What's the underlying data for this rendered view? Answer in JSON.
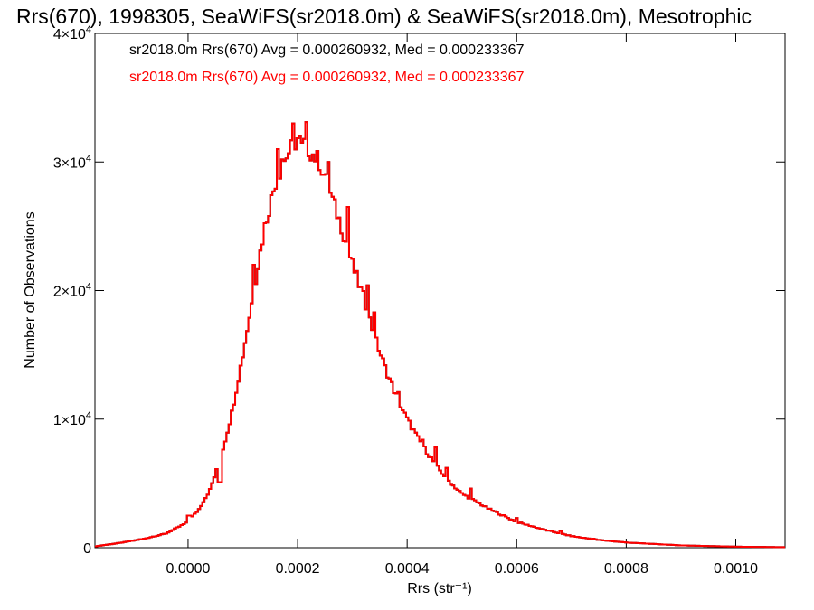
{
  "chart_data": {
    "type": "histogram",
    "title": "Rrs(670), 1998305, SeaWiFS(sr2018.0m) & SeaWiFS(sr2018.0m), Mesotrophic",
    "xlabel": "Rrs (str⁻¹)",
    "ylabel": "Number of Observations",
    "xlim": [
      -0.00017,
      0.00109
    ],
    "ylim": [
      0,
      40000
    ],
    "x_ticks": [
      {
        "value": 0.0,
        "label": "0.0000"
      },
      {
        "value": 0.0002,
        "label": "0.0002"
      },
      {
        "value": 0.0004,
        "label": "0.0004"
      },
      {
        "value": 0.0006,
        "label": "0.0006"
      },
      {
        "value": 0.0008,
        "label": "0.0008"
      },
      {
        "value": 0.001,
        "label": "0.0010"
      }
    ],
    "y_ticks": [
      {
        "value": 0,
        "mantissa": "0",
        "exponent": ""
      },
      {
        "value": 10000,
        "mantissa": "1×10",
        "exponent": "4"
      },
      {
        "value": 20000,
        "mantissa": "2×10",
        "exponent": "4"
      },
      {
        "value": 30000,
        "mantissa": "3×10",
        "exponent": "4"
      },
      {
        "value": 40000,
        "mantissa": "4×10",
        "exponent": "4"
      }
    ],
    "grid": false,
    "series": [
      {
        "name": "sr2018.0m Rrs(670) Avg = 0.000260932, Med = 0.000233367",
        "color": "#000000",
        "bin_start": -0.00017,
        "bin_width": 4e-06,
        "curve": [
          [
            -0.00017,
            100
          ],
          [
            -0.00012,
            400
          ],
          [
            -8e-05,
            700
          ],
          [
            -4e-05,
            1100
          ],
          [
            0.0,
            2000
          ],
          [
            2e-05,
            3000
          ],
          [
            4e-05,
            4500
          ],
          [
            6e-05,
            7000
          ],
          [
            8e-05,
            10500
          ],
          [
            0.0001,
            15000
          ],
          [
            0.00012,
            20000
          ],
          [
            0.00014,
            25000
          ],
          [
            0.00016,
            28500
          ],
          [
            0.00018,
            30500
          ],
          [
            0.0002,
            31800
          ],
          [
            0.00021,
            31500
          ],
          [
            0.00022,
            31000
          ],
          [
            0.00024,
            30000
          ],
          [
            0.00026,
            27500
          ],
          [
            0.00028,
            25000
          ],
          [
            0.0003,
            22000
          ],
          [
            0.00032,
            19500
          ],
          [
            0.00034,
            16500
          ],
          [
            0.00036,
            14000
          ],
          [
            0.00038,
            11800
          ],
          [
            0.0004,
            10000
          ],
          [
            0.00042,
            8500
          ],
          [
            0.00044,
            7200
          ],
          [
            0.00046,
            6000
          ],
          [
            0.00048,
            5000
          ],
          [
            0.0005,
            4200
          ],
          [
            0.00055,
            3000
          ],
          [
            0.0006,
            2000
          ],
          [
            0.00065,
            1400
          ],
          [
            0.0007,
            900
          ],
          [
            0.00075,
            600
          ],
          [
            0.0008,
            400
          ],
          [
            0.0009,
            180
          ],
          [
            0.001,
            80
          ],
          [
            0.00109,
            40
          ]
        ],
        "spikes": [
          [
            2e-06,
            2500
          ],
          [
            5.8e-05,
            5100
          ],
          [
            0.00012,
            22000
          ],
          [
            0.000164,
            31000
          ],
          [
            0.000172,
            30200
          ],
          [
            0.000192,
            33000
          ],
          [
            0.000208,
            31500
          ],
          [
            0.000216,
            33100
          ],
          [
            0.000256,
            30000
          ],
          [
            0.000292,
            26500
          ],
          [
            0.000328,
            20400
          ],
          [
            0.00034,
            18300
          ],
          [
            0.000384,
            12100
          ],
          [
            0.000428,
            8400
          ],
          [
            0.000452,
            7800
          ],
          [
            0.000472,
            6200
          ],
          [
            0.000516,
            4600
          ],
          [
            0.0006,
            2300
          ],
          [
            0.00068,
            1300
          ],
          [
            0.00074,
            700
          ]
        ]
      },
      {
        "name": "sr2018.0m Rrs(670) Avg = 0.000260932, Med = 0.000233367",
        "color": "#ff0000",
        "same_as_series": 0
      }
    ]
  }
}
